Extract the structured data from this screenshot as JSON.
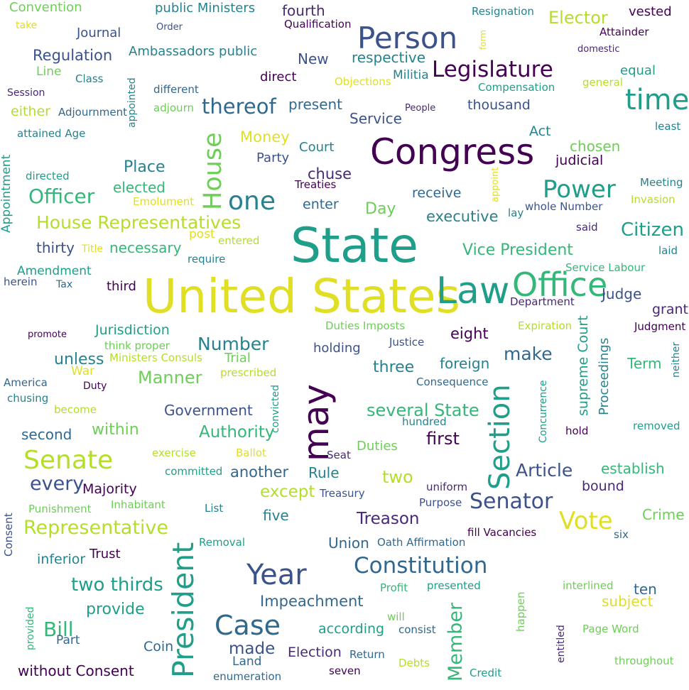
{
  "palette": {
    "c1": "#440154",
    "c2": "#482878",
    "c3": "#3b528b",
    "c4": "#31688e",
    "c5": "#26828e",
    "c6": "#1f9e89",
    "c7": "#35b779",
    "c8": "#6ece58",
    "c9": "#b5de2b",
    "c10": "#e0df25"
  },
  "words": {
    "w0": "Convention",
    "w1": "public Ministers",
    "w2": "fourth",
    "w3": "Resignation",
    "w4": "vested",
    "w5": "take",
    "w6": "Qualification",
    "w7": "Elector",
    "w8": "Order",
    "w9": "Journal",
    "w10": "Person",
    "w11": "form",
    "w12": "Attainder",
    "w13": "Regulation",
    "w14": "Ambassadors public",
    "w15": "New",
    "w16": "respective",
    "w17": "domestic",
    "w18": "Line",
    "w19": "Legislature",
    "w20": "direct",
    "w21": "Militia",
    "w22": "equal",
    "w23": "Class",
    "w24": "Objections",
    "w25": "general",
    "w26": "Session",
    "w27": "appointed",
    "w28": "different",
    "w29": "Compensation",
    "w30": "time",
    "w31": "either",
    "w32": "Adjournment",
    "w33": "adjourn",
    "w34": "thereof",
    "w35": "present",
    "w36": "People",
    "w37": "thousand",
    "w38": "Service",
    "w39": "attained Age",
    "w40": "least",
    "w41": "Act",
    "w42": "Money",
    "w43": "Congress",
    "w44": "Appointment",
    "w45": "Court",
    "w46": "chosen",
    "w47": "Party",
    "w48": "judicial",
    "w49": "directed",
    "w50": "Place",
    "w51": "House",
    "w52": "chuse",
    "w53": "appoint",
    "w54": "Meeting",
    "w55": "Treaties",
    "w56": "elected",
    "w57": "Officer",
    "w58": "receive",
    "w59": "Power",
    "w60": "one",
    "w61": "Emolument",
    "w62": "Invasion",
    "w63": "enter",
    "w64": "Day",
    "w65": "whole Number",
    "w66": "lay",
    "w67": "House Representatives",
    "w68": "executive",
    "w69": "said",
    "w70": "post",
    "w71": "Citizen",
    "w72": "entered",
    "w73": "thirty",
    "w74": "Title",
    "w75": "necessary",
    "w76": "State",
    "w77": "Vice President",
    "w78": "laid",
    "w79": "require",
    "w80": "Amendment",
    "w81": "Service Labour",
    "w82": "herein",
    "w83": "Tax",
    "w84": "third",
    "w85": "United States",
    "w86": "Law",
    "w87": "Office",
    "w88": "Judge",
    "w89": "Department",
    "w90": "grant",
    "w91": "Duties Imposts",
    "w92": "Expiration",
    "w93": "promote",
    "w94": "Jurisdiction",
    "w95": "eight",
    "w96": "Judgment",
    "w97": "think proper",
    "w98": "Justice",
    "w99": "supreme Court",
    "w100": "Number",
    "w101": "holding",
    "w102": "make",
    "w103": "Proceedings",
    "w104": "unless",
    "w105": "Ministers Consuls",
    "w106": "Trial",
    "w107": "neither",
    "w108": "foreign",
    "w109": "War",
    "w110": "three",
    "w111": "Term",
    "w112": "America",
    "w113": "Duty",
    "w114": "Manner",
    "w115": "prescribed",
    "w116": "Consequence",
    "w117": "chusing",
    "w118": "convicted",
    "w119": "may",
    "w120": "Section",
    "w121": "Concurrence",
    "w122": "become",
    "w123": "Government",
    "w124": "several State",
    "w125": "hundred",
    "w126": "second",
    "w127": "within",
    "w128": "Authority",
    "w129": "removed",
    "w130": "hold",
    "w131": "first",
    "w132": "Senate",
    "w133": "exercise",
    "w134": "Ballot",
    "w135": "Seat",
    "w136": "Duties",
    "w137": "committed",
    "w138": "another",
    "w139": "Rule",
    "w140": "Article",
    "w141": "establish",
    "w142": "two",
    "w143": "every",
    "w144": "Majority",
    "w145": "except",
    "w146": "uniform",
    "w147": "bound",
    "w148": "Treasury",
    "w149": "Punishment",
    "w150": "Inhabitant",
    "w151": "List",
    "w152": "Purpose",
    "w153": "Senator",
    "w154": "Consent",
    "w155": "five",
    "w156": "Crime",
    "w157": "Treason",
    "w158": "Representative",
    "w159": "Vote",
    "w160": "fill Vacancies",
    "w161": "six",
    "w162": "Removal",
    "w163": "Union",
    "w164": "Oath Affirmation",
    "w165": "inferior",
    "w166": "Trust",
    "w167": "Constitution",
    "w168": "Year",
    "w169": "President",
    "w170": "two thirds",
    "w171": "Profit",
    "w172": "presented",
    "w173": "interlined",
    "w174": "ten",
    "w175": "Impeachment",
    "w176": "subject",
    "w177": "happen",
    "w178": "provide",
    "w179": "will",
    "w180": "Case",
    "w181": "according",
    "w182": "Bill",
    "w183": "consist",
    "w184": "Member",
    "w185": "Page Word",
    "w186": "provided",
    "w187": "entitled",
    "w188": "Part",
    "w189": "Coin",
    "w190": "made",
    "w191": "Election",
    "w192": "Return",
    "w193": "throughout",
    "w194": "Land",
    "w195": "Debts",
    "w196": "without Consent",
    "w197": "seven",
    "w198": "Credit",
    "w199": "enumeration"
  }
}
